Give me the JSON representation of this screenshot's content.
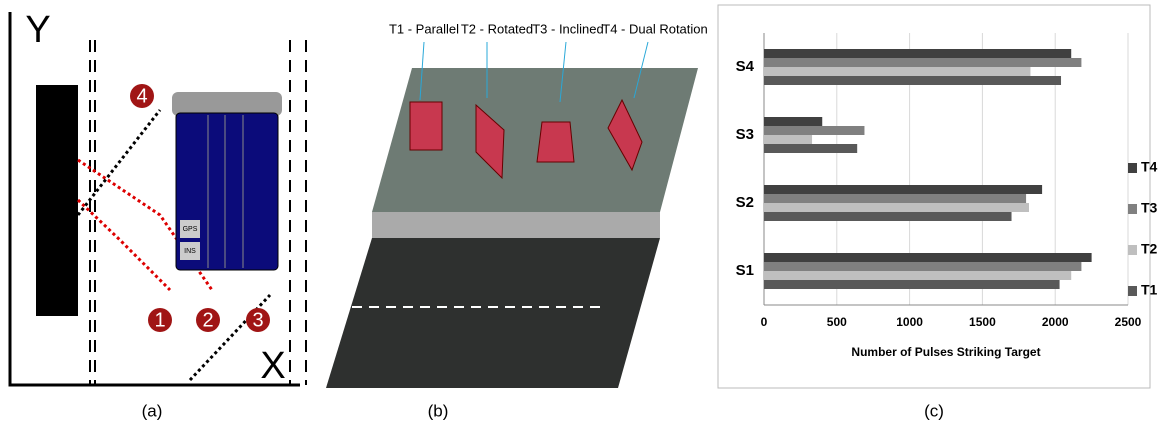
{
  "chart_data": {
    "type": "hbar",
    "xlabel": "Number of Pulses Striking Target",
    "categories": [
      "S1",
      "S2",
      "S3",
      "S4"
    ],
    "series": [
      {
        "name": "T1",
        "color": "#595959",
        "values": [
          2030,
          1700,
          640,
          2040
        ]
      },
      {
        "name": "T2",
        "color": "#bfbfbf",
        "values": [
          2110,
          1820,
          330,
          1830
        ]
      },
      {
        "name": "T3",
        "color": "#808080",
        "values": [
          2180,
          1800,
          690,
          2180
        ]
      },
      {
        "name": "T4",
        "color": "#404040",
        "values": [
          2250,
          1910,
          400,
          2110
        ]
      }
    ],
    "xlim": [
      0,
      2500
    ],
    "xticks": [
      0,
      500,
      1000,
      1500,
      2000,
      2500
    ],
    "grid": true,
    "legend": "right"
  },
  "figure": {
    "panel_labels": [
      "(a)",
      "(b)",
      "(c)"
    ],
    "panel_a": {
      "axis_y": "Y",
      "axis_x": "X",
      "markers": [
        "1",
        "2",
        "3",
        "4"
      ],
      "devices": [
        "INS",
        "GPS"
      ]
    },
    "panel_b": {
      "targets": [
        "T1 - Parallel",
        "T2 - Rotated",
        "T3 - Inclined",
        "T4 - Dual Rotation"
      ]
    }
  }
}
